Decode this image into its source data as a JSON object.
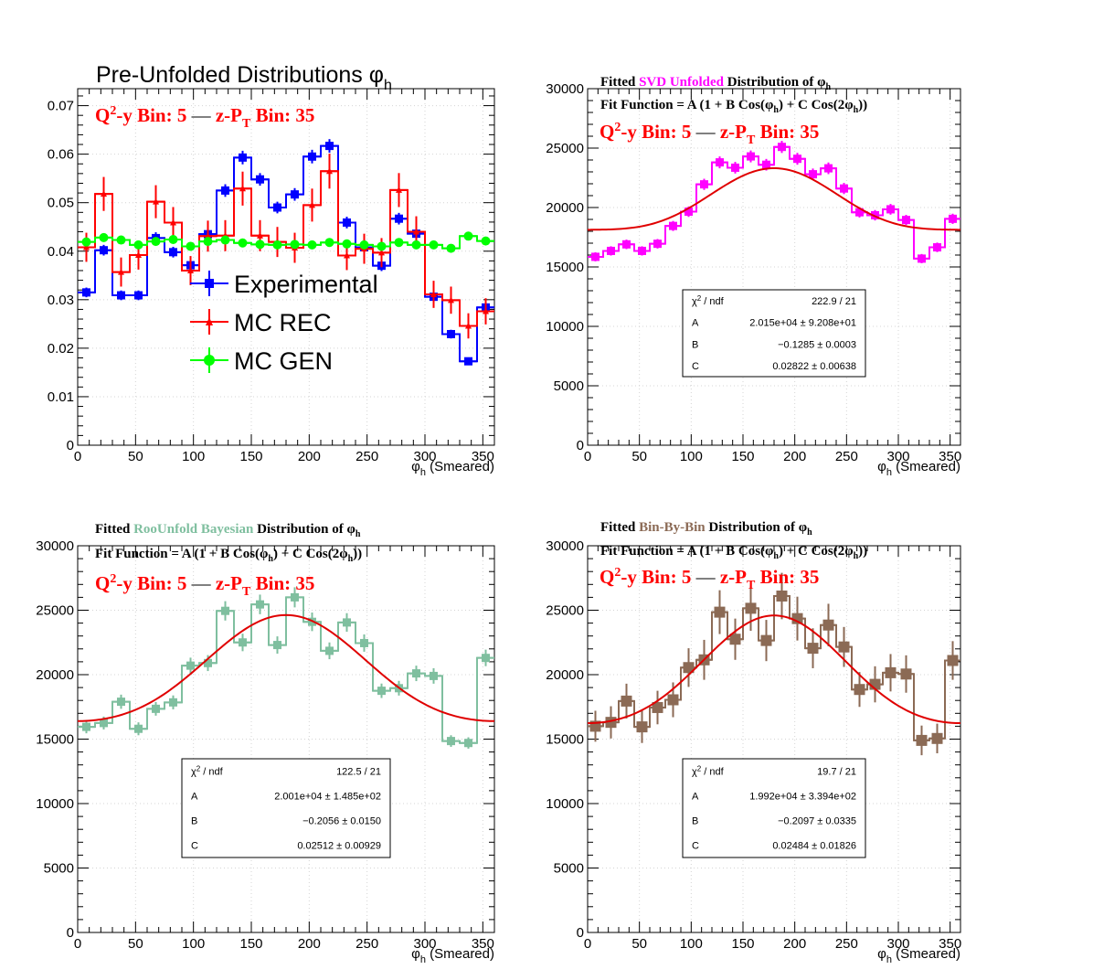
{
  "chart_data": [
    {
      "type": "histogram",
      "title": "Pre-Unfolded Distributions",
      "title_sym": "φ",
      "title_sub": "h",
      "bin_label": {
        "qy": "y Bin: 5",
        "dash": "—",
        "zpt": "z-P",
        "zpt_tail": "Bin: 35"
      },
      "xlabel": "(Smeared)",
      "x_ticks": [
        0,
        50,
        100,
        150,
        200,
        250,
        300,
        350
      ],
      "y_ticks": [
        "0",
        "0.01",
        "0.02",
        "0.03",
        "0.04",
        "0.05",
        "0.06",
        "0.07"
      ],
      "y_tick_values": [
        0,
        0.01,
        0.02,
        0.03,
        0.04,
        0.05,
        0.06,
        0.07
      ],
      "xlim": [
        0,
        360
      ],
      "ylim": [
        0,
        0.0735
      ],
      "grid": true,
      "legend": "center",
      "series": [
        {
          "name": "Experimental",
          "color": "#0000ff",
          "marker": "square",
          "values": [
            0.0315,
            0.0402,
            0.0309,
            0.0309,
            0.0427,
            0.0398,
            0.0371,
            0.0435,
            0.0525,
            0.0593,
            0.0548,
            0.049,
            0.0517,
            0.0595,
            0.0617,
            0.0459,
            0.0408,
            0.037,
            0.0467,
            0.0436,
            0.0306,
            0.0229,
            0.0173,
            0.0284
          ],
          "errors": [
            0.001,
            0.0011,
            0.001,
            0.001,
            0.0012,
            0.0011,
            0.0011,
            0.0012,
            0.0013,
            0.0014,
            0.0013,
            0.0012,
            0.0013,
            0.0014,
            0.0014,
            0.0012,
            0.0011,
            0.0011,
            0.0012,
            0.0012,
            0.001,
            0.0009,
            0.0008,
            0.001
          ]
        },
        {
          "name": "MC REC",
          "color": "#ff0000",
          "marker": "star",
          "values": [
            0.0408,
            0.0518,
            0.0357,
            0.0392,
            0.0502,
            0.0459,
            0.036,
            0.0431,
            0.0432,
            0.0529,
            0.0432,
            0.0419,
            0.0407,
            0.0495,
            0.0565,
            0.0391,
            0.0405,
            0.0397,
            0.0526,
            0.044,
            0.0311,
            0.0299,
            0.0246,
            0.0276
          ],
          "errors": [
            0.003,
            0.0035,
            0.003,
            0.003,
            0.0034,
            0.0032,
            0.003,
            0.0032,
            0.0032,
            0.0035,
            0.0032,
            0.0031,
            0.0031,
            0.0034,
            0.0036,
            0.003,
            0.0031,
            0.003,
            0.0035,
            0.0032,
            0.0028,
            0.0028,
            0.0026,
            0.0027
          ]
        },
        {
          "name": "MC GEN",
          "color": "#00ff00",
          "marker": "circle",
          "values": [
            0.0419,
            0.0428,
            0.0423,
            0.0413,
            0.042,
            0.0424,
            0.041,
            0.042,
            0.0423,
            0.0417,
            0.0414,
            0.0413,
            0.0414,
            0.0413,
            0.0418,
            0.0415,
            0.0413,
            0.041,
            0.0418,
            0.0413,
            0.0413,
            0.0406,
            0.0431,
            0.0421
          ],
          "errors": [
            0.0003,
            0.0003,
            0.0003,
            0.0003,
            0.0003,
            0.0003,
            0.0003,
            0.0003,
            0.0003,
            0.0003,
            0.0003,
            0.0003,
            0.0003,
            0.0003,
            0.0003,
            0.0003,
            0.0003,
            0.0003,
            0.0003,
            0.0003,
            0.0003,
            0.0003,
            0.0003,
            0.0003
          ]
        }
      ]
    },
    {
      "type": "histogram",
      "title_prefix": "Fitted",
      "title_method": "SVD Unfolded",
      "title_method_color": "#ff00ff",
      "title_suffix": "Distribution of",
      "fit_function": {
        "lead": "Fit Function = A (1 + B Cos(",
        "mid": ") + C Cos(2",
        "tail": "))"
      },
      "bin_label": {
        "qy": "y Bin: 5",
        "dash": "—",
        "zpt": "z-P",
        "zpt_tail": "Bin: 35"
      },
      "xlabel": "(Smeared)",
      "x_ticks": [
        0,
        50,
        100,
        150,
        200,
        250,
        300,
        350
      ],
      "y_ticks": [
        "0",
        "5000",
        "10000",
        "15000",
        "20000",
        "25000",
        "30000"
      ],
      "y_tick_values": [
        0,
        5000,
        10000,
        15000,
        20000,
        25000,
        30000
      ],
      "xlim": [
        0,
        360
      ],
      "ylim": [
        0,
        30000
      ],
      "grid": true,
      "series": [
        {
          "name": "SVD Unfolded",
          "color": "#ff00ff",
          "marker": "square",
          "values": [
            15850,
            16350,
            16900,
            16350,
            16950,
            18450,
            19650,
            21950,
            23800,
            23350,
            24300,
            23600,
            25100,
            24100,
            22800,
            23300,
            21600,
            19600,
            19350,
            19850,
            18950,
            15700,
            16650,
            19050
          ],
          "errors": [
            380,
            390,
            400,
            390,
            400,
            420,
            440,
            470,
            500,
            490,
            500,
            490,
            510,
            500,
            480,
            490,
            470,
            440,
            440,
            450,
            430,
            390,
            400,
            430
          ]
        }
      ],
      "fit": {
        "A": 20150,
        "B": -0.1285,
        "C": 0.02822,
        "color": "#e00000"
      },
      "stats": [
        {
          "label": "χ² / ndf",
          "value": "222.9 / 21"
        },
        {
          "label": "A",
          "value": "2.015e+04  ± 9.208e+01"
        },
        {
          "label": "B",
          "value": "−0.1285  ± 0.0003"
        },
        {
          "label": "C",
          "value": "0.02822  ± 0.00638"
        }
      ]
    },
    {
      "type": "histogram",
      "title_prefix": "Fitted",
      "title_method": "RooUnfold Bayesian",
      "title_method_color": "#7fbf9f",
      "title_suffix": "Distribution of",
      "fit_function": {
        "lead": "Fit Function = A (1 + B Cos(",
        "mid": ") + C Cos(2",
        "tail": "))"
      },
      "bin_label": {
        "qy": "y Bin: 5",
        "dash": "—",
        "zpt": "z-P",
        "zpt_tail": "Bin: 35"
      },
      "xlabel": "(Smeared)",
      "x_ticks": [
        0,
        50,
        100,
        150,
        200,
        250,
        300,
        350
      ],
      "y_ticks": [
        "0",
        "5000",
        "10000",
        "15000",
        "20000",
        "25000",
        "30000"
      ],
      "y_tick_values": [
        0,
        5000,
        10000,
        15000,
        20000,
        25000,
        30000
      ],
      "xlim": [
        0,
        360
      ],
      "ylim": [
        0,
        30000
      ],
      "grid": true,
      "series": [
        {
          "name": "RooUnfold Bayesian",
          "color": "#7fbf9f",
          "marker": "square",
          "values": [
            15950,
            16250,
            17900,
            15800,
            17350,
            17850,
            20700,
            20900,
            24950,
            22500,
            25450,
            22300,
            26000,
            24100,
            21850,
            24050,
            22450,
            18750,
            18950,
            20100,
            19900,
            14850,
            14700,
            21300
          ],
          "errors": [
            500,
            500,
            550,
            500,
            530,
            540,
            620,
            620,
            750,
            680,
            760,
            670,
            780,
            720,
            650,
            720,
            670,
            560,
            570,
            600,
            600,
            450,
            440,
            640
          ]
        }
      ],
      "fit": {
        "A": 20010,
        "B": -0.2056,
        "C": 0.02512,
        "color": "#e00000"
      },
      "stats": [
        {
          "label": "χ² / ndf",
          "value": "122.5 / 21"
        },
        {
          "label": "A",
          "value": "2.001e+04 ± 1.485e+02"
        },
        {
          "label": "B",
          "value": "−0.2056 ± 0.0150"
        },
        {
          "label": "C",
          "value": "0.02512 ± 0.00929"
        }
      ]
    },
    {
      "type": "histogram",
      "title_prefix": "Fitted",
      "title_method": "Bin-By-Bin",
      "title_method_color": "#8b6a55",
      "title_suffix": "Distribution of",
      "fit_function": {
        "lead": "Fit Function = A (1 + B Cos(",
        "mid": ") + C Cos(2",
        "tail": "))"
      },
      "bin_label": {
        "qy": "y Bin: 5",
        "dash": "—",
        "zpt": "z-P",
        "zpt_tail": "Bin: 35"
      },
      "xlabel": "(Smeared)",
      "x_ticks": [
        0,
        50,
        100,
        150,
        200,
        250,
        300,
        350
      ],
      "y_ticks": [
        "0",
        "5000",
        "10000",
        "15000",
        "20000",
        "25000",
        "30000"
      ],
      "y_tick_values": [
        0,
        5000,
        10000,
        15000,
        20000,
        25000,
        30000
      ],
      "xlim": [
        0,
        360
      ],
      "ylim": [
        0,
        30000
      ],
      "grid": true,
      "series": [
        {
          "name": "Bin-By-Bin",
          "color": "#8b6a55",
          "marker": "square",
          "values": [
            16000,
            16300,
            17950,
            15950,
            17450,
            18050,
            20550,
            21150,
            24850,
            22750,
            25150,
            22650,
            26100,
            24350,
            22050,
            23850,
            22150,
            18850,
            19250,
            20150,
            20050,
            14900,
            15050,
            21100
          ],
          "errors": [
            1200,
            1250,
            1350,
            1250,
            1300,
            1350,
            1500,
            1550,
            1700,
            1600,
            1750,
            1600,
            1800,
            1700,
            1550,
            1650,
            1550,
            1350,
            1400,
            1450,
            1450,
            1150,
            1150,
            1500
          ]
        }
      ],
      "fit": {
        "A": 19920,
        "B": -0.2097,
        "C": 0.02484,
        "color": "#e00000"
      },
      "stats": [
        {
          "label": "χ² / ndf",
          "value": "19.7 / 21"
        },
        {
          "label": "A",
          "value": "1.992e+04 ± 3.394e+02"
        },
        {
          "label": "B",
          "value": "−0.2097 ± 0.0335"
        },
        {
          "label": "C",
          "value": "0.02484 ± 0.01826"
        }
      ]
    }
  ]
}
